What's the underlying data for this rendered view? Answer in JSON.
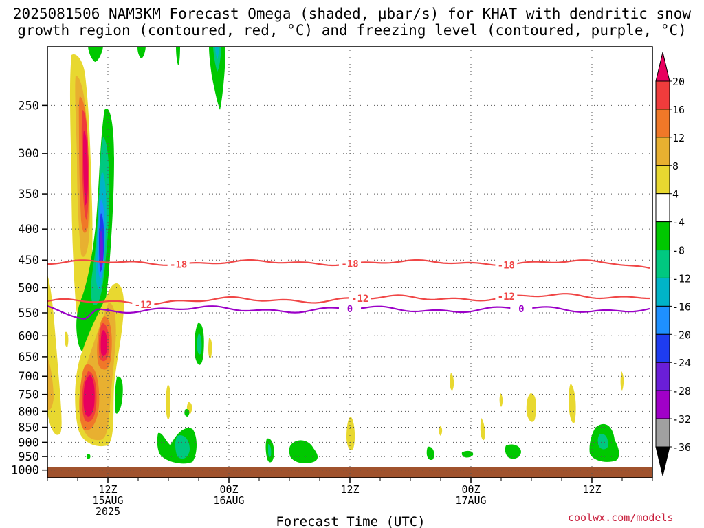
{
  "chart_data": {
    "type": "heatmap",
    "title_line1": "2025081506 NAM3KM Forecast Omega (shaded, μbar/s) for KHAT with dendritic snow",
    "title_line2": "growth region (contoured, red, °C) and freezing level (contoured, purple, °C)",
    "xlabel": "Forecast Time (UTC)",
    "credit": "coolwx.com/models",
    "y_axis": {
      "scale": "log-pressure",
      "ticks": [
        250,
        300,
        350,
        400,
        450,
        500,
        550,
        600,
        650,
        700,
        750,
        800,
        850,
        900,
        950,
        1000
      ],
      "range": [
        200,
        1030
      ]
    },
    "x_axis": {
      "range_hours": [
        6,
        66
      ],
      "ticks": [
        {
          "hour": 12,
          "line1": "12Z",
          "line2": "15AUG",
          "line3": "2025"
        },
        {
          "hour": 24,
          "line1": "00Z",
          "line2": "16AUG",
          "line3": ""
        },
        {
          "hour": 36,
          "line1": "12Z",
          "line2": "",
          "line3": ""
        },
        {
          "hour": 48,
          "line1": "00Z",
          "line2": "17AUG",
          "line3": ""
        },
        {
          "hour": 60,
          "line1": "12Z",
          "line2": "",
          "line3": ""
        }
      ]
    },
    "colorbar": {
      "labels": [
        "20",
        "16",
        "12",
        "8",
        "4",
        "-4",
        "-8",
        "-12",
        "-16",
        "-20",
        "-24",
        "-28",
        "-32",
        "-36"
      ],
      "colors": [
        "#e8005e",
        "#f03c3c",
        "#f07828",
        "#e8b030",
        "#e8d830",
        "#ffffff",
        "#00c800",
        "#00c880",
        "#00b4c8",
        "#1e90ff",
        "#1e3cf0",
        "#6a1ed8",
        "#a000c8",
        "#a0a0a0",
        "#000000"
      ]
    },
    "contours": [
      {
        "label": "-18",
        "color": "#f04646",
        "label_hours": [
          19,
          36,
          51.5
        ]
      },
      {
        "label": "-12",
        "color": "#f04646",
        "label_hours": [
          15.5,
          37,
          51.5
        ]
      },
      {
        "label": "0",
        "color": "#9b00c8",
        "label_hours": [
          36,
          53
        ]
      }
    ]
  }
}
